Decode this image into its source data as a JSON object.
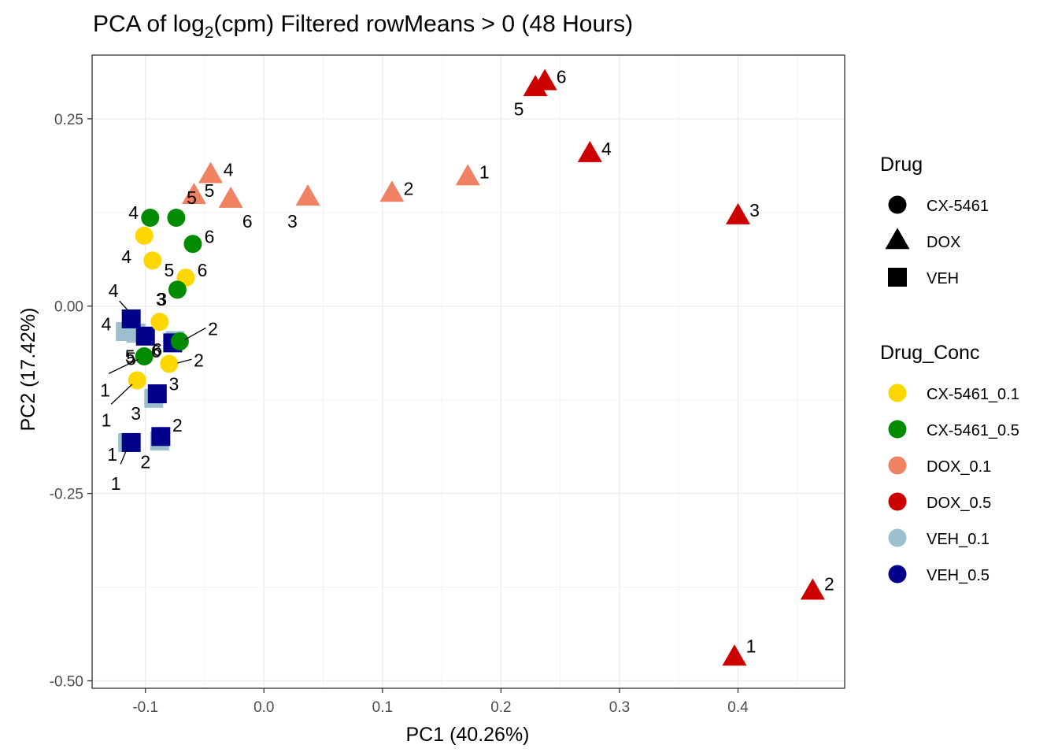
{
  "chart_data": {
    "type": "scatter",
    "title": "PCA of log2(cpm) Filtered rowMeans > 0 (48 Hours)",
    "title_parts": {
      "prefix": "PCA of log",
      "subscript": "2",
      "suffix": "(cpm) Filtered rowMeans > 0 (48 Hours)"
    },
    "xlabel": "PC1 (40.26%)",
    "ylabel": "PC2 (17.42%)",
    "xlim": [
      -0.145,
      0.49
    ],
    "ylim": [
      -0.51,
      0.335
    ],
    "x_ticks": [
      -0.1,
      0.0,
      0.1,
      0.2,
      0.3,
      0.4
    ],
    "x_tick_labels": [
      "-0.1",
      "0.0",
      "0.1",
      "0.2",
      "0.3",
      "0.4"
    ],
    "y_ticks": [
      -0.5,
      -0.25,
      0.0,
      0.25
    ],
    "y_tick_labels": [
      "-0.50",
      "-0.25",
      "0.00",
      "0.25"
    ],
    "grid": true,
    "legend": {
      "placement": "right",
      "shape_title": "Drug",
      "shapes": [
        {
          "label": "CX-5461",
          "shape": "circle"
        },
        {
          "label": "DOX",
          "shape": "triangle"
        },
        {
          "label": "VEH",
          "shape": "square"
        }
      ],
      "color_title": "Drug_Conc",
      "colors": [
        {
          "label": "CX-5461_0.1",
          "color": "#FFD700"
        },
        {
          "label": "CX-5461_0.5",
          "color": "#008B00"
        },
        {
          "label": "DOX_0.1",
          "color": "#EE8262"
        },
        {
          "label": "DOX_0.5",
          "color": "#CD0000"
        },
        {
          "label": "VEH_0.1",
          "color": "#9AC0CD"
        },
        {
          "label": "VEH_0.5",
          "color": "#00008B"
        }
      ]
    },
    "series": [
      {
        "name": "VEH_0.1",
        "shape": "square",
        "color": "#9AC0CD",
        "points": [
          {
            "x": -0.115,
            "y": -0.182,
            "label": "1",
            "lx": -0.128,
            "ly": -0.198
          },
          {
            "x": -0.088,
            "y": -0.18,
            "label": "2",
            "lx": -0.1,
            "ly": -0.208
          },
          {
            "x": -0.093,
            "y": -0.123,
            "label": "3",
            "lx": -0.108,
            "ly": -0.143
          },
          {
            "x": -0.117,
            "y": -0.034,
            "label": "4",
            "lx": -0.133,
            "ly": -0.024
          },
          {
            "x": -0.108,
            "y": -0.036,
            "label": "5",
            "lx": -0.113,
            "ly": -0.067
          },
          {
            "x": -0.075,
            "y": -0.046,
            "label": "6",
            "lx": -0.09,
            "ly": -0.058
          }
        ]
      },
      {
        "name": "VEH_0.5",
        "shape": "square",
        "color": "#00008B",
        "points": [
          {
            "x": -0.112,
            "y": -0.182,
            "label": "1",
            "lx": -0.125,
            "ly": -0.237,
            "seg": [
              -0.121,
              -0.211,
              -0.116,
              -0.192
            ]
          },
          {
            "x": -0.087,
            "y": -0.174,
            "label": "2",
            "lx": -0.073,
            "ly": -0.159
          },
          {
            "x": -0.09,
            "y": -0.117,
            "label": "3",
            "lx": -0.076,
            "ly": -0.104
          },
          {
            "x": -0.112,
            "y": -0.017,
            "label": "4",
            "lx": -0.127,
            "ly": 0.021,
            "seg": [
              -0.122,
              0.007,
              -0.114,
              -0.007
            ]
          },
          {
            "x": -0.1,
            "y": -0.04,
            "label": "5",
            "lx": -0.112,
            "ly": -0.07
          },
          {
            "x": -0.077,
            "y": -0.049,
            "label": "6",
            "lx": -0.091,
            "ly": -0.06
          }
        ]
      },
      {
        "name": "CX-5461_0.1",
        "shape": "circle",
        "color": "#FFD700",
        "points": [
          {
            "x": -0.107,
            "y": -0.099,
            "label": "1",
            "lx": -0.133,
            "ly": -0.152,
            "seg": [
              -0.129,
              -0.131,
              -0.111,
              -0.104
            ]
          },
          {
            "x": -0.08,
            "y": -0.077,
            "label": "2",
            "lx": -0.055,
            "ly": -0.072,
            "seg": [
              -0.061,
              -0.071,
              -0.073,
              -0.076
            ]
          },
          {
            "x": -0.088,
            "y": -0.021,
            "label": "3",
            "lx": -0.087,
            "ly": 0.009
          },
          {
            "x": -0.101,
            "y": 0.094,
            "label": "4",
            "lx": -0.116,
            "ly": 0.066
          },
          {
            "x": -0.094,
            "y": 0.061,
            "label": "5",
            "lx": -0.08,
            "ly": 0.048
          },
          {
            "x": -0.066,
            "y": 0.038,
            "label": "6",
            "lx": -0.052,
            "ly": 0.048
          }
        ]
      },
      {
        "name": "CX-5461_0.5",
        "shape": "circle",
        "color": "#008B00",
        "points": [
          {
            "x": -0.101,
            "y": -0.067,
            "label": "1",
            "lx": -0.134,
            "ly": -0.112,
            "seg": [
              -0.131,
              -0.09,
              -0.106,
              -0.071
            ]
          },
          {
            "x": -0.071,
            "y": -0.047,
            "label": "2",
            "lx": -0.043,
            "ly": -0.03,
            "seg": [
              -0.049,
              -0.029,
              -0.067,
              -0.045
            ]
          },
          {
            "x": -0.073,
            "y": 0.022,
            "label": "3",
            "lx": -0.086,
            "ly": 0.009
          },
          {
            "x": -0.096,
            "y": 0.118,
            "label": "4",
            "lx": -0.11,
            "ly": 0.125
          },
          {
            "x": -0.074,
            "y": 0.118,
            "label": "5",
            "lx": -0.061,
            "ly": 0.145
          },
          {
            "x": -0.06,
            "y": 0.083,
            "label": "6",
            "lx": -0.046,
            "ly": 0.093
          }
        ]
      },
      {
        "name": "DOX_0.1",
        "shape": "triangle",
        "color": "#EE8262",
        "points": [
          {
            "x": 0.172,
            "y": 0.172,
            "label": "1",
            "lx": 0.186,
            "ly": 0.179
          },
          {
            "x": 0.108,
            "y": 0.15,
            "label": "2",
            "lx": 0.122,
            "ly": 0.157
          },
          {
            "x": 0.037,
            "y": 0.145,
            "label": "3",
            "lx": 0.024,
            "ly": 0.113
          },
          {
            "x": -0.045,
            "y": 0.175,
            "label": "4",
            "lx": -0.03,
            "ly": 0.182
          },
          {
            "x": -0.059,
            "y": 0.147,
            "label": "5",
            "lx": -0.046,
            "ly": 0.154
          },
          {
            "x": -0.028,
            "y": 0.142,
            "label": "6",
            "lx": -0.014,
            "ly": 0.113
          }
        ]
      },
      {
        "name": "DOX_0.5",
        "shape": "triangle",
        "color": "#CD0000",
        "points": [
          {
            "x": 0.397,
            "y": -0.469,
            "label": "1",
            "lx": 0.411,
            "ly": -0.454
          },
          {
            "x": 0.463,
            "y": -0.381,
            "label": "2",
            "lx": 0.477,
            "ly": -0.371
          },
          {
            "x": 0.4,
            "y": 0.12,
            "label": "3",
            "lx": 0.414,
            "ly": 0.128
          },
          {
            "x": 0.275,
            "y": 0.203,
            "label": "4",
            "lx": 0.289,
            "ly": 0.21
          },
          {
            "x": 0.229,
            "y": 0.291,
            "label": "5",
            "lx": 0.215,
            "ly": 0.263
          },
          {
            "x": 0.237,
            "y": 0.299,
            "label": "6",
            "lx": 0.251,
            "ly": 0.306
          }
        ]
      }
    ]
  }
}
